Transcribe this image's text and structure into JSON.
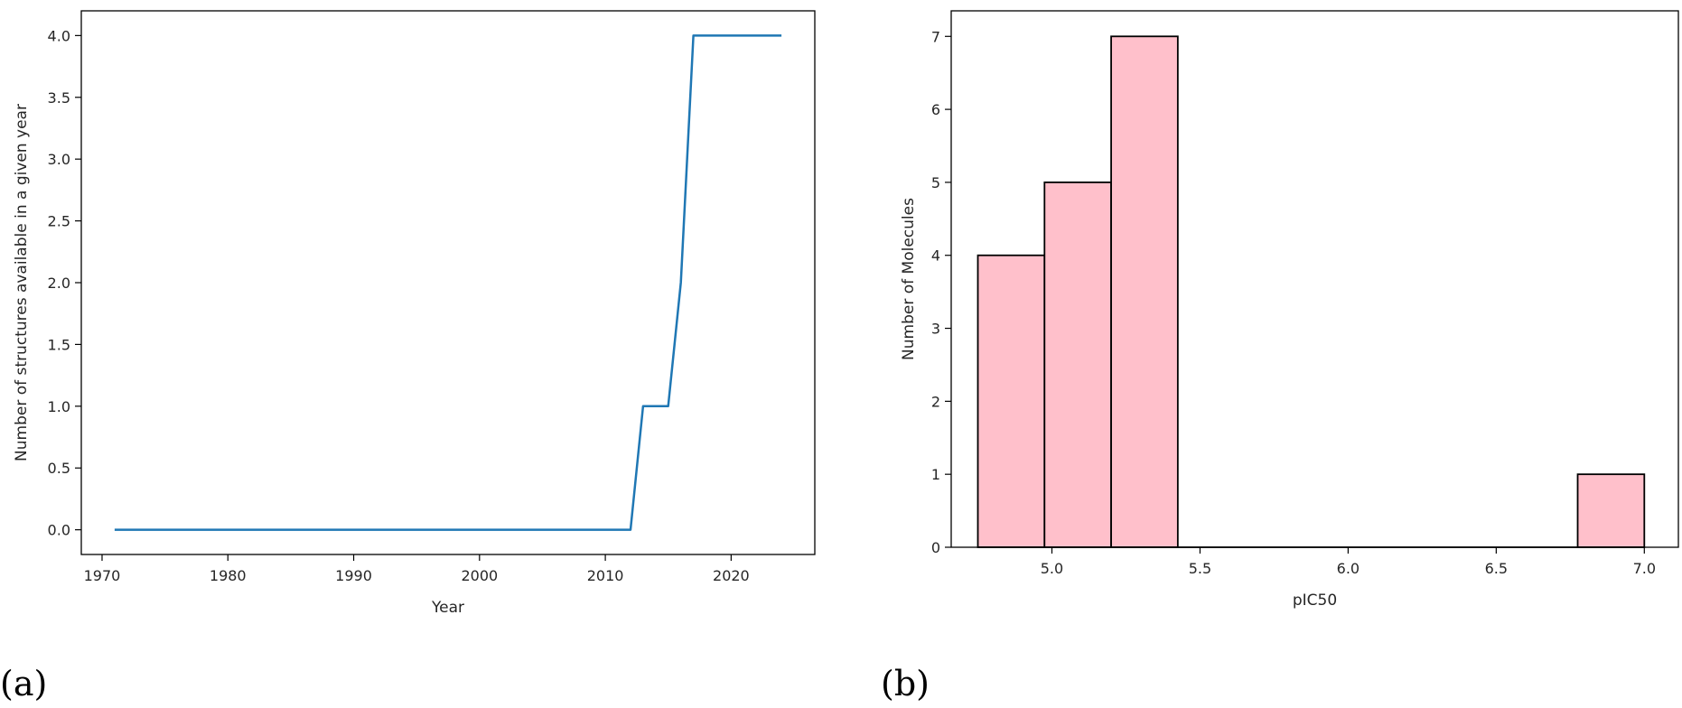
{
  "panels": {
    "a_label": "(a)",
    "b_label": "(b)"
  },
  "chart_data": [
    {
      "type": "line",
      "title": "",
      "xlabel": "Year",
      "ylabel": "Number of structures available in a given year",
      "xlim": [
        1968.35,
        2026.65
      ],
      "ylim": [
        -0.2,
        4.2
      ],
      "xticks": [
        1970,
        1980,
        1990,
        2000,
        2010,
        2020
      ],
      "yticks": [
        0.0,
        0.5,
        1.0,
        1.5,
        2.0,
        2.5,
        3.0,
        3.5,
        4.0
      ],
      "ytick_labels": [
        "0.0",
        "0.5",
        "1.0",
        "1.5",
        "2.0",
        "2.5",
        "3.0",
        "3.5",
        "4.0"
      ],
      "grid": false,
      "color": "#1f77b4",
      "x": [
        1971,
        2012,
        2013,
        2015,
        2016,
        2017,
        2024
      ],
      "y": [
        0,
        0,
        1,
        1,
        2,
        4,
        4
      ]
    },
    {
      "type": "bar",
      "title": "",
      "xlabel": "pIC50",
      "ylabel": "Number of Molecules",
      "xlim": [
        4.66,
        7.115
      ],
      "ylim": [
        0,
        7.35
      ],
      "xticks": [
        5.0,
        5.5,
        6.0,
        6.5,
        7.0
      ],
      "xtick_labels": [
        "5.0",
        "5.5",
        "6.0",
        "6.5",
        "7.0"
      ],
      "yticks": [
        0,
        1,
        2,
        3,
        4,
        5,
        6,
        7
      ],
      "grid": false,
      "color": "#ffc0cb",
      "edge_color": "#000000",
      "bins": [
        {
          "start": 4.75,
          "end": 4.975,
          "count": 4
        },
        {
          "start": 4.975,
          "end": 5.2,
          "count": 5
        },
        {
          "start": 5.2,
          "end": 5.425,
          "count": 7
        },
        {
          "start": 5.425,
          "end": 5.65,
          "count": 0
        },
        {
          "start": 5.65,
          "end": 5.875,
          "count": 0
        },
        {
          "start": 5.875,
          "end": 6.1,
          "count": 0
        },
        {
          "start": 6.1,
          "end": 6.325,
          "count": 0
        },
        {
          "start": 6.325,
          "end": 6.55,
          "count": 0
        },
        {
          "start": 6.55,
          "end": 6.775,
          "count": 0
        },
        {
          "start": 6.775,
          "end": 7.0,
          "count": 1
        }
      ]
    }
  ]
}
